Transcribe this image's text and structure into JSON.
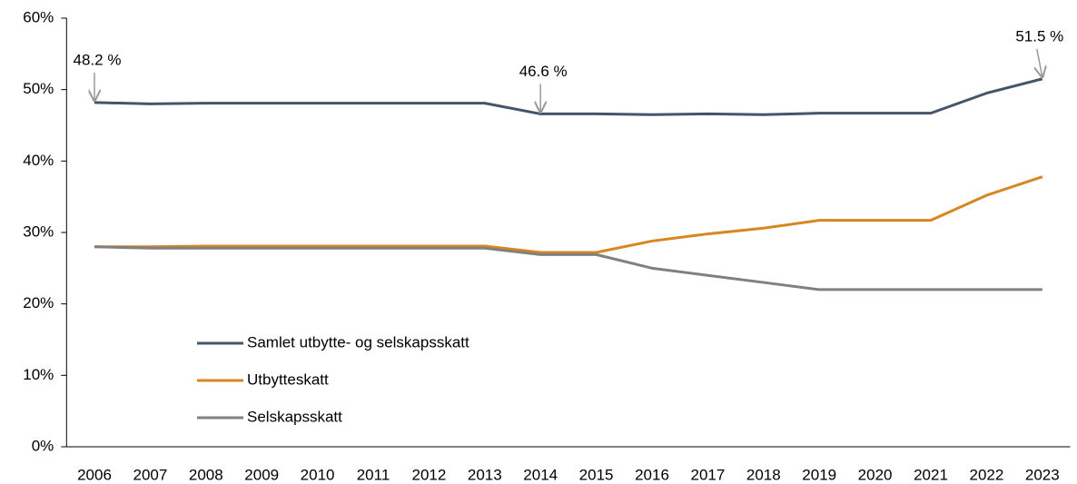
{
  "chart_data": {
    "type": "line",
    "categories": [
      "2006",
      "2007",
      "2008",
      "2009",
      "2010",
      "2011",
      "2012",
      "2013",
      "2014",
      "2015",
      "2016",
      "2017",
      "2018",
      "2019",
      "2020",
      "2021",
      "2022",
      "2023"
    ],
    "series": [
      {
        "name": "Samlet utbytte- og selskapsskatt",
        "color": "#44546a",
        "values": [
          48.2,
          48.0,
          48.1,
          48.1,
          48.1,
          48.1,
          48.1,
          48.1,
          46.6,
          46.6,
          46.5,
          46.6,
          46.5,
          46.7,
          46.7,
          46.7,
          49.5,
          51.5
        ]
      },
      {
        "name": "Utbytteskatt",
        "color": "#d9861f",
        "values": [
          28.0,
          28.0,
          28.1,
          28.1,
          28.1,
          28.1,
          28.1,
          28.1,
          27.2,
          27.2,
          28.8,
          29.8,
          30.6,
          31.7,
          31.7,
          31.7,
          35.2,
          37.8
        ]
      },
      {
        "name": "Selskapsskatt",
        "color": "#7f8082",
        "values": [
          28.0,
          27.8,
          27.8,
          27.8,
          27.8,
          27.8,
          27.8,
          27.8,
          26.9,
          26.9,
          25.0,
          24.0,
          23.0,
          22.0,
          22.0,
          22.0,
          22.0,
          22.0
        ]
      }
    ],
    "annotations": [
      {
        "label": "48.2 %",
        "x": "2006",
        "y": 48.2
      },
      {
        "label": "46.6 %",
        "x": "2014",
        "y": 46.6
      },
      {
        "label": "51.5 %",
        "x": "2023",
        "y": 51.5
      }
    ],
    "ylim": [
      0,
      60
    ],
    "yticks": [
      {
        "value": 0,
        "label": "0%"
      },
      {
        "value": 10,
        "label": "10%"
      },
      {
        "value": 20,
        "label": "20%"
      },
      {
        "value": 30,
        "label": "30%"
      },
      {
        "value": 40,
        "label": "40%"
      },
      {
        "value": 50,
        "label": "50%"
      },
      {
        "value": 60,
        "label": "60%"
      }
    ],
    "grid": false,
    "legend": "lower left"
  }
}
